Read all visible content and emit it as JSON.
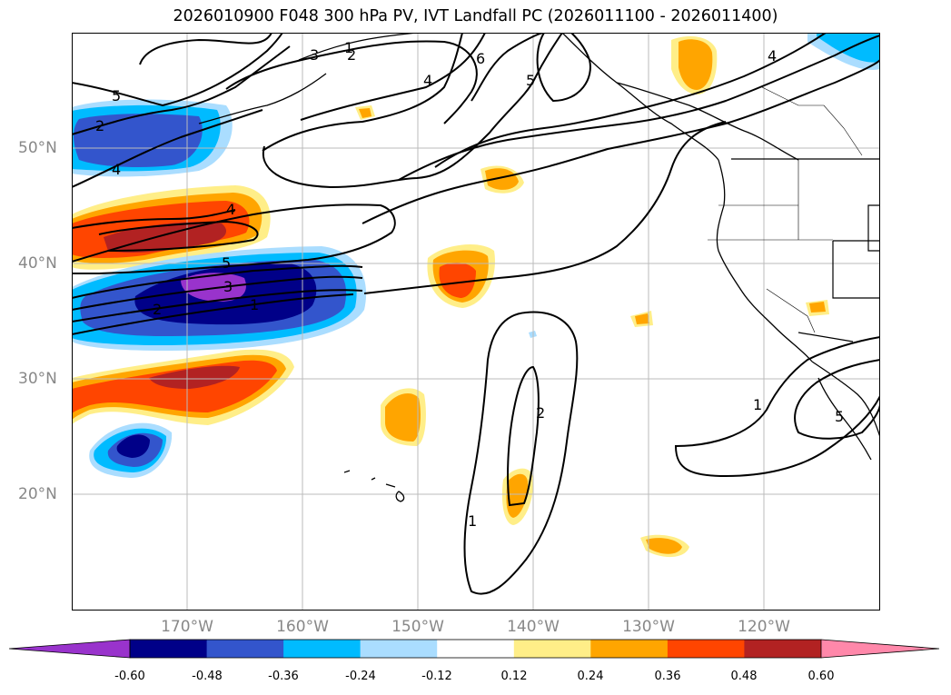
{
  "title": "2026010900 F048 300 hPa PV, IVT Landfall PC (2026011100 - 2026011400)",
  "lon_labels": [
    "170°W",
    "160°W",
    "150°W",
    "140°W",
    "130°W",
    "120°W"
  ],
  "lat_labels": [
    "50°N",
    "40°N",
    "30°N",
    "20°N"
  ],
  "colorbar": {
    "ticks": [
      "-0.60",
      "-0.48",
      "-0.36",
      "-0.24",
      "-0.12",
      "0.12",
      "0.24",
      "0.36",
      "0.48",
      "0.60"
    ],
    "colors": [
      "#9933cc",
      "#000088",
      "#3355cc",
      "#00bbff",
      "#aaddff",
      "#ffffff",
      "#ffee88",
      "#ffa500",
      "#ff4500",
      "#b22222",
      "#ff88aa"
    ]
  },
  "contour_labels": [
    "5",
    "4",
    "2",
    "1",
    "3",
    "2",
    "6",
    "5",
    "4",
    "4",
    "5",
    "3",
    "2",
    "1",
    "4",
    "2",
    "1",
    "1",
    "5"
  ],
  "map": {
    "extent_lon": [
      -180,
      -110
    ],
    "extent_lat": [
      10,
      60
    ],
    "gridlines": true
  }
}
